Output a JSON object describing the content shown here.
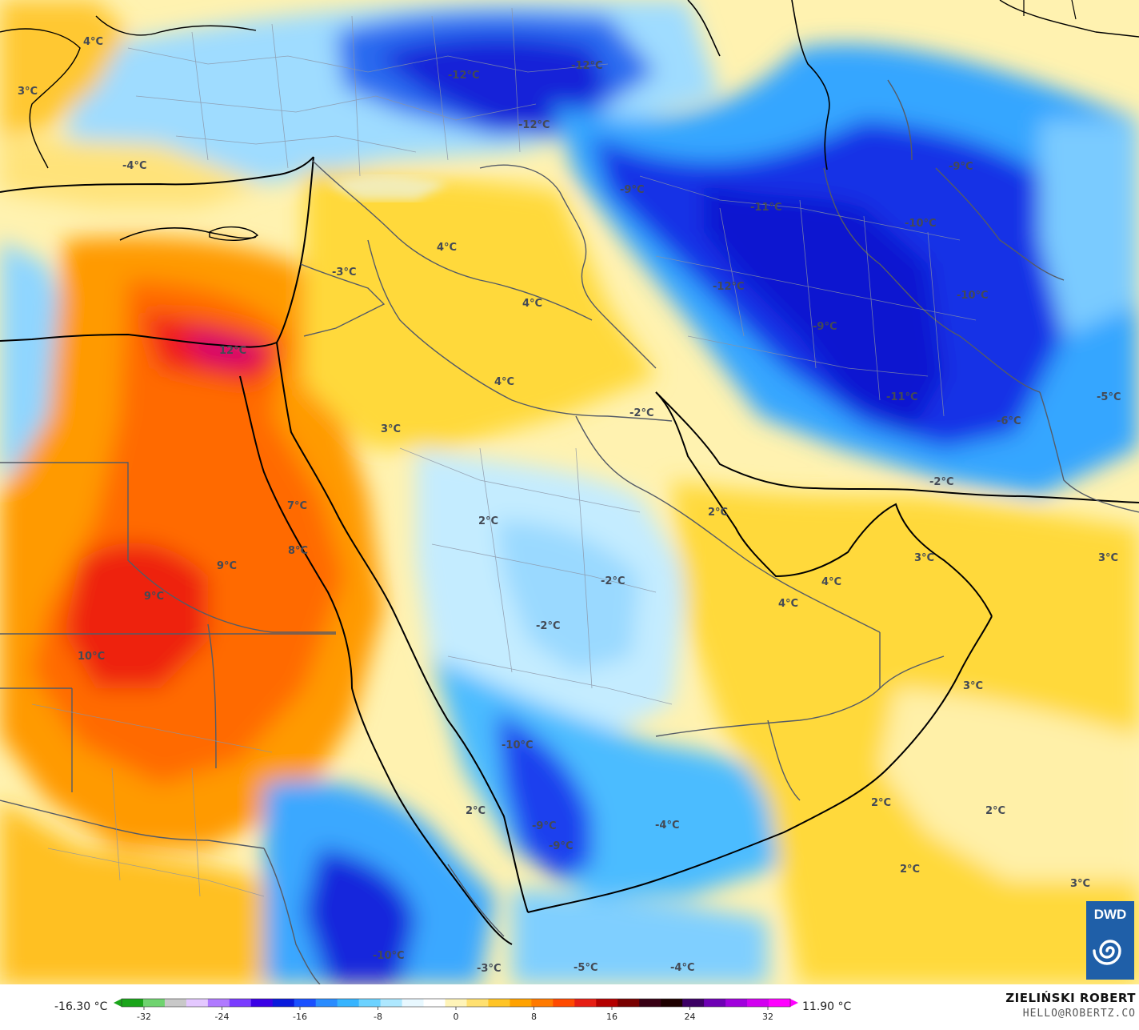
{
  "map": {
    "labels": [
      {
        "text": "4°C"
      },
      {
        "text": "3°C"
      },
      {
        "text": "-4°C"
      },
      {
        "text": "-12°C"
      },
      {
        "text": "-12°C"
      },
      {
        "text": "-12°C"
      },
      {
        "text": "-9°C"
      },
      {
        "text": "-11°C"
      },
      {
        "text": "-9°C"
      },
      {
        "text": "-10°C"
      },
      {
        "text": "-10°C"
      },
      {
        "text": "-12°C"
      },
      {
        "text": "-9°C"
      },
      {
        "text": "-11°C"
      },
      {
        "text": "-5°C"
      },
      {
        "text": "-6°C"
      },
      {
        "text": "-2°C"
      },
      {
        "text": "4°C"
      },
      {
        "text": "4°C"
      },
      {
        "text": "-3°C"
      },
      {
        "text": "12°C"
      },
      {
        "text": "4°C"
      },
      {
        "text": "3°C"
      },
      {
        "text": "-2°C"
      },
      {
        "text": "2°C"
      },
      {
        "text": "2°C"
      },
      {
        "text": "7°C"
      },
      {
        "text": "8°C"
      },
      {
        "text": "9°C"
      },
      {
        "text": "9°C"
      },
      {
        "text": "10°C"
      },
      {
        "text": "-2°C"
      },
      {
        "text": "-2°C"
      },
      {
        "text": "4°C"
      },
      {
        "text": "4°C"
      },
      {
        "text": "3°C"
      },
      {
        "text": "3°C"
      },
      {
        "text": "3°C"
      },
      {
        "text": "-10°C"
      },
      {
        "text": "2°C"
      },
      {
        "text": "-9°C"
      },
      {
        "text": "-9°C"
      },
      {
        "text": "-4°C"
      },
      {
        "text": "2°C"
      },
      {
        "text": "2°C"
      },
      {
        "text": "2°C"
      },
      {
        "text": "3°C"
      },
      {
        "text": "-10°C"
      },
      {
        "text": "-3°C"
      },
      {
        "text": "-5°C"
      },
      {
        "text": "-4°C"
      }
    ]
  },
  "legend": {
    "min_label": "-16.30 °C",
    "max_label": "11.90 °C",
    "ticks": [
      "-32",
      "-24",
      "-16",
      "-8",
      "0",
      "8",
      "16",
      "24",
      "32"
    ],
    "colors": [
      "#1aa51a",
      "#6fd36f",
      "#c8c8c8",
      "#e4c8ff",
      "#b07aff",
      "#7a3cff",
      "#3a00e6",
      "#0a1adc",
      "#1a50ff",
      "#2a8cff",
      "#36b4ff",
      "#6cd2ff",
      "#aee8ff",
      "#e8f8ff",
      "#ffffff",
      "#fff4b8",
      "#ffe070",
      "#ffc426",
      "#ffa200",
      "#ff7a00",
      "#ff4a00",
      "#e61e14",
      "#b40000",
      "#780000",
      "#380014",
      "#1e0000",
      "#3c0064",
      "#6e00b4",
      "#a000dc",
      "#d200f0",
      "#ff00ff"
    ]
  },
  "credit": {
    "name": "ZIELIŃSKI ROBERT",
    "email": "HELLO@ROBERTZ.CO"
  },
  "logo": {
    "text": "DWD"
  }
}
